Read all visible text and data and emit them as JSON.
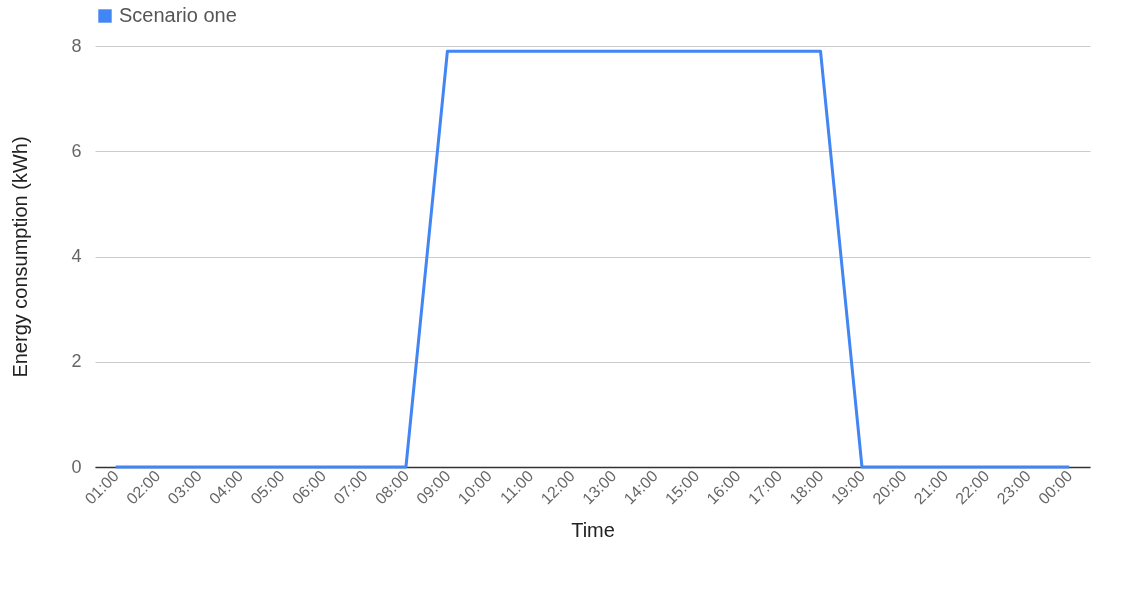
{
  "chart_data": {
    "type": "line",
    "xlabel": "Time",
    "ylabel": "Energy consumption (kWh)",
    "categories": [
      "01:00",
      "02:00",
      "03:00",
      "04:00",
      "05:00",
      "06:00",
      "07:00",
      "08:00",
      "09:00",
      "10:00",
      "11:00",
      "12:00",
      "13:00",
      "14:00",
      "15:00",
      "16:00",
      "17:00",
      "18:00",
      "19:00",
      "20:00",
      "21:00",
      "22:00",
      "23:00",
      "00:00"
    ],
    "series": [
      {
        "name": "Scenario one",
        "color": "#4285f4",
        "values": [
          0,
          0,
          0,
          0,
          0,
          0,
          0,
          0,
          7.9,
          7.9,
          7.9,
          7.9,
          7.9,
          7.9,
          7.9,
          7.9,
          7.9,
          7.9,
          0,
          0,
          0,
          0,
          0,
          0
        ]
      }
    ],
    "ylim": [
      0,
      8
    ],
    "yticks": [
      0,
      2,
      4,
      6,
      8
    ],
    "grid": "y",
    "legend": "top",
    "marker": "none",
    "line_style": "solid"
  }
}
